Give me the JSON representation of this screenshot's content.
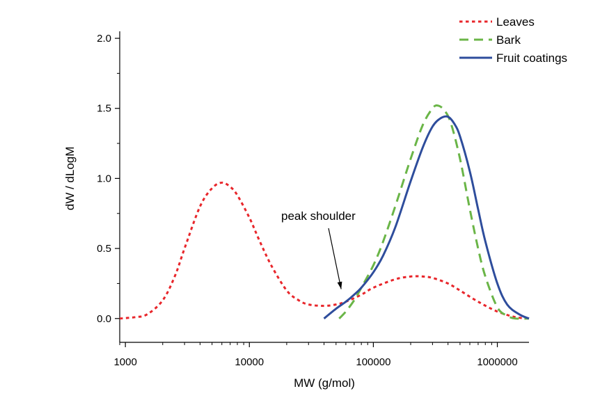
{
  "chart_data": {
    "type": "line",
    "title": "",
    "xlabel": "MW (g/mol)",
    "ylabel": "dW / dLogM",
    "x_scale": "log",
    "xlim": [
      900,
      1800000
    ],
    "ylim": [
      -0.17,
      2.05
    ],
    "x_ticks": [
      1000,
      10000,
      100000,
      1000000
    ],
    "x_tick_labels": [
      "1000",
      "10000",
      "100000",
      "1000000"
    ],
    "y_ticks": [
      0,
      0.5,
      1,
      1.5,
      2
    ],
    "y_tick_labels": [
      "0.0",
      "0.5",
      "1.0",
      "1.5",
      "2.0"
    ],
    "grid": false,
    "legend_position": "top-right",
    "series": [
      {
        "name": "Leaves",
        "color": "#e8262b",
        "style": "dotted",
        "x": [
          900,
          1200,
          1500,
          2000,
          2500,
          3000,
          4000,
          5000,
          6000,
          7000,
          8000,
          10000,
          12000,
          15000,
          20000,
          25000,
          30000,
          40000,
          50000,
          60000,
          80000,
          100000,
          150000,
          200000,
          250000,
          300000,
          400000,
          500000,
          700000,
          1000000,
          1400000,
          1800000
        ],
        "values": [
          0.0,
          0.01,
          0.03,
          0.13,
          0.3,
          0.5,
          0.8,
          0.93,
          0.97,
          0.94,
          0.88,
          0.72,
          0.56,
          0.38,
          0.2,
          0.13,
          0.1,
          0.09,
          0.1,
          0.12,
          0.17,
          0.22,
          0.28,
          0.3,
          0.3,
          0.29,
          0.25,
          0.2,
          0.12,
          0.05,
          0.01,
          0.0
        ]
      },
      {
        "name": "Bark",
        "color": "#6ab547",
        "style": "dashed",
        "x": [
          53000,
          60000,
          70000,
          80000,
          100000,
          120000,
          150000,
          200000,
          250000,
          300000,
          330000,
          370000,
          420000,
          500000,
          600000,
          700000,
          800000,
          1000000,
          1200000,
          1400000,
          1800000
        ],
        "values": [
          0.0,
          0.05,
          0.13,
          0.22,
          0.38,
          0.55,
          0.8,
          1.14,
          1.38,
          1.5,
          1.52,
          1.49,
          1.4,
          1.14,
          0.78,
          0.5,
          0.3,
          0.08,
          0.02,
          0.0,
          0.0
        ]
      },
      {
        "name": "Fruit coatings",
        "color": "#2e4d9c",
        "style": "solid",
        "x": [
          40000,
          50000,
          60000,
          70000,
          80000,
          100000,
          120000,
          150000,
          200000,
          250000,
          300000,
          350000,
          400000,
          450000,
          500000,
          600000,
          700000,
          800000,
          1000000,
          1200000,
          1500000,
          1800000
        ],
        "values": [
          0.0,
          0.07,
          0.12,
          0.17,
          0.22,
          0.33,
          0.45,
          0.65,
          0.98,
          1.22,
          1.37,
          1.43,
          1.44,
          1.39,
          1.3,
          1.05,
          0.78,
          0.55,
          0.25,
          0.1,
          0.03,
          0.0
        ]
      }
    ],
    "annotations": [
      {
        "text": "peak shoulder",
        "x": 55000,
        "y": 0.2
      }
    ]
  }
}
